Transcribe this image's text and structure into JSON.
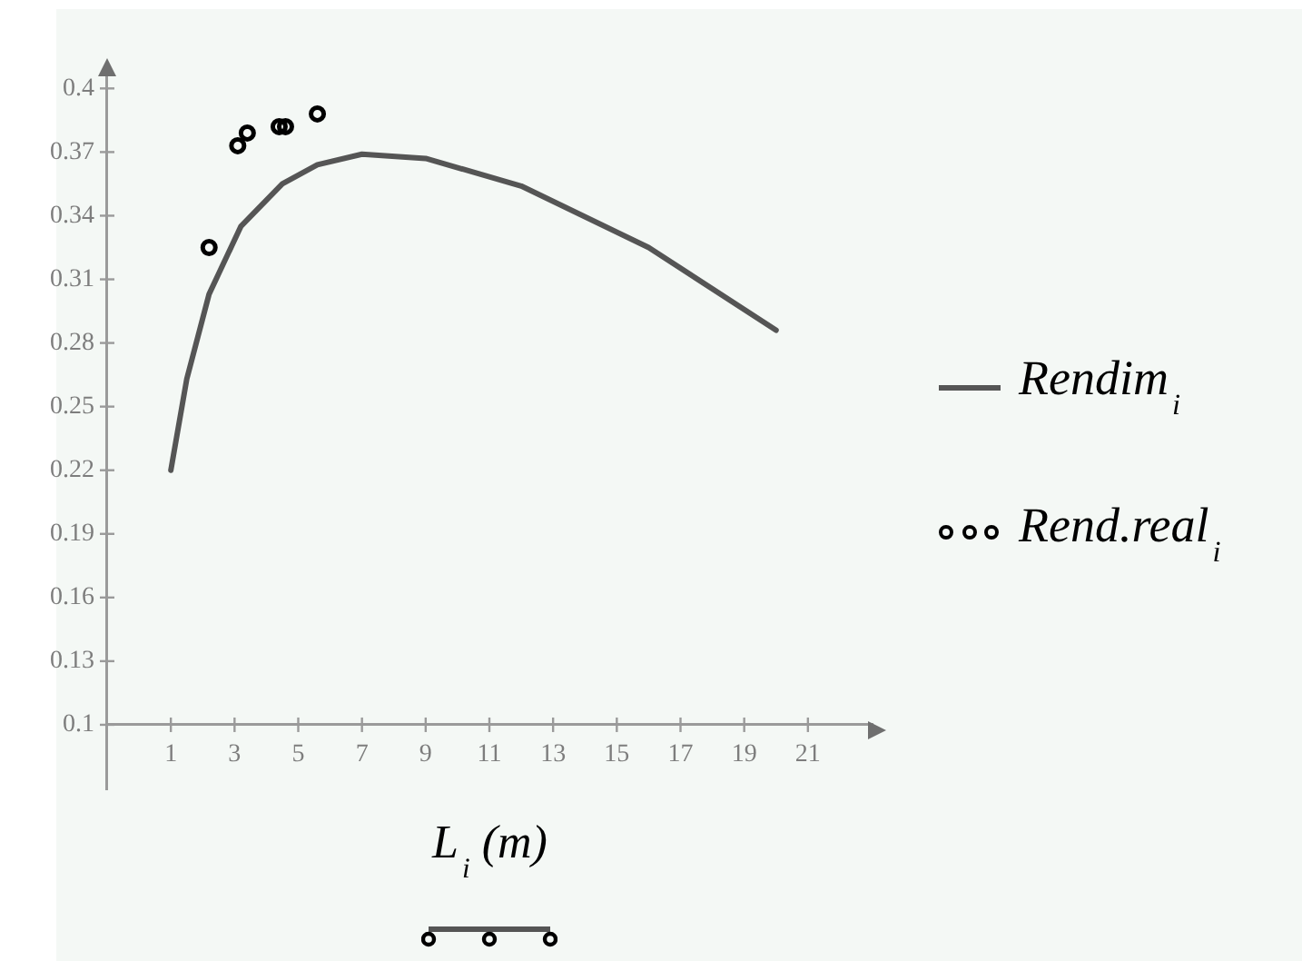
{
  "chart_data": {
    "type": "line",
    "xlabel": "L$_{i}$ (m)",
    "xlim": [
      -1,
      23
    ],
    "xticks": [
      1,
      3,
      5,
      7,
      9,
      11,
      13,
      15,
      17,
      19,
      21
    ],
    "ylim": [
      0.07,
      0.41
    ],
    "yticks": [
      0.1,
      0.13,
      0.16,
      0.19,
      0.22,
      0.25,
      0.28,
      0.31,
      0.34,
      0.37,
      0.4
    ],
    "legend": "right",
    "series": [
      {
        "name": "Rendim$_{i}$",
        "color": "#555555",
        "marker": "none",
        "x": [
          1,
          1.5,
          2.2,
          3.2,
          4.5,
          5.6,
          7,
          9,
          12,
          16,
          20
        ],
        "values": [
          0.22,
          0.263,
          0.303,
          0.335,
          0.355,
          0.364,
          0.369,
          0.367,
          0.354,
          0.325,
          0.286
        ]
      },
      {
        "name": "Rend.real$_{i}$",
        "type": "scatter",
        "color": "#000000",
        "marker": "circle",
        "x": [
          2.2,
          3.1,
          3.4,
          4.4,
          4.6,
          5.6
        ],
        "values": [
          0.325,
          0.373,
          0.379,
          0.382,
          0.382,
          0.388
        ]
      }
    ]
  }
}
